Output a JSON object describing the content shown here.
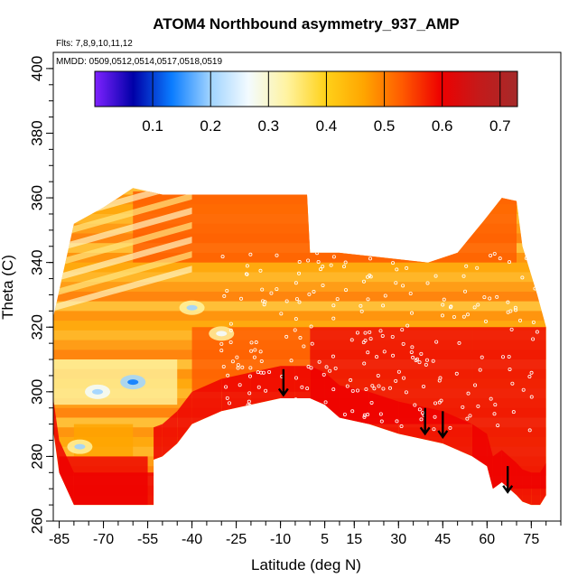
{
  "chart_data": {
    "type": "heatmap",
    "title": "ATOM4 Northbound asymmetry_937_AMP",
    "subtitle_flights": "Flts: 7,8,9,10,11,12",
    "subtitle_dates": "MMDD: 0509,0512,0514,0517,0518,0519",
    "xlabel": "Latitude (deg N)",
    "ylabel": "Theta (C)",
    "xlim": [
      -87,
      85
    ],
    "ylim": [
      260,
      405
    ],
    "x_ticks": [
      -85,
      -70,
      -55,
      -40,
      -25,
      -10,
      5,
      15,
      30,
      45,
      60,
      75
    ],
    "x_tick_labels": [
      "-85",
      "-70",
      "-55",
      "-40",
      "-25",
      "-10",
      "5",
      "15",
      "30",
      "45",
      "60",
      "75"
    ],
    "y_ticks": [
      260,
      280,
      300,
      320,
      340,
      360,
      380,
      400
    ],
    "y_tick_labels": [
      "260",
      "280",
      "300",
      "320",
      "340",
      "360",
      "380",
      "400"
    ],
    "colorbar": {
      "range": [
        0.0,
        0.73
      ],
      "ticks": [
        0.1,
        0.2,
        0.3,
        0.4,
        0.5,
        0.6,
        0.7
      ],
      "tick_labels": [
        "0.1",
        "0.2",
        "0.3",
        "0.4",
        "0.5",
        "0.6",
        "0.7"
      ],
      "colors": [
        "#7f22ff",
        "#0000a8",
        "#0a7cff",
        "#9fd3ff",
        "#f3fbff",
        "#fff3a0",
        "#ffd21a",
        "#ffa500",
        "#ff5a00",
        "#ee0000",
        "#c41a1a",
        "#a52a2a"
      ]
    },
    "region": {
      "upper_boundary": [
        [
          -87,
          323
        ],
        [
          -80,
          352
        ],
        [
          -70,
          357
        ],
        [
          -60,
          363
        ],
        [
          -50,
          361
        ],
        [
          -40,
          361
        ],
        [
          -20,
          361
        ],
        [
          -1,
          361
        ],
        [
          0,
          343
        ],
        [
          10,
          343
        ],
        [
          20,
          342
        ],
        [
          30,
          341
        ],
        [
          40,
          340
        ],
        [
          50,
          343
        ],
        [
          59,
          353
        ],
        [
          65,
          360
        ],
        [
          70,
          359
        ],
        [
          72,
          345
        ],
        [
          77,
          330
        ],
        [
          80,
          320
        ]
      ],
      "lower_boundary": [
        [
          -87,
          288
        ],
        [
          -85,
          275
        ],
        [
          -80,
          265
        ],
        [
          -53,
          265
        ],
        [
          -53,
          279
        ],
        [
          -50,
          280
        ],
        [
          -45,
          284
        ],
        [
          -40,
          290
        ],
        [
          -30,
          294
        ],
        [
          -20,
          296
        ],
        [
          -10,
          298
        ],
        [
          -5,
          298
        ],
        [
          0,
          298
        ],
        [
          5,
          296
        ],
        [
          10,
          292
        ],
        [
          20,
          290
        ],
        [
          30,
          287
        ],
        [
          40,
          285
        ],
        [
          45,
          284
        ],
        [
          55,
          280
        ],
        [
          60,
          277
        ],
        [
          62,
          270
        ],
        [
          65,
          272
        ],
        [
          70,
          268
        ],
        [
          72,
          266
        ],
        [
          75,
          265
        ],
        [
          78,
          265
        ],
        [
          80,
          268
        ]
      ],
      "value_bands": [
        {
          "lat": [
            -87,
            -45
          ],
          "theta": [
            296,
            310
          ],
          "value": 0.35
        },
        {
          "lat": [
            -80,
            -60
          ],
          "theta": [
            280,
            290
          ],
          "value": 0.45
        },
        {
          "lat": [
            -85,
            -55
          ],
          "theta": [
            265,
            280
          ],
          "value": 0.62
        },
        {
          "lat": [
            -40,
            0
          ],
          "theta": [
            300,
            320
          ],
          "value": 0.52
        },
        {
          "lat": [
            0,
            55
          ],
          "theta": [
            290,
            320
          ],
          "value": 0.62
        },
        {
          "lat": [
            -60,
            70
          ],
          "theta": [
            340,
            362
          ],
          "value": 0.5
        },
        {
          "lat": [
            55,
            80
          ],
          "theta": [
            270,
            320
          ],
          "value": 0.6
        }
      ]
    },
    "cold_spots": [
      {
        "lat": -60,
        "theta": 303,
        "value": 0.2
      },
      {
        "lat": -40,
        "theta": 326,
        "value": 0.3
      },
      {
        "lat": -72,
        "theta": 300,
        "value": 0.25
      },
      {
        "lat": -30,
        "theta": 318,
        "value": 0.32
      },
      {
        "lat": -78,
        "theta": 283,
        "value": 0.3
      }
    ],
    "arrows": [
      {
        "lat": -9,
        "theta": 301
      },
      {
        "lat": 39,
        "theta": 289
      },
      {
        "lat": 45,
        "theta": 288
      },
      {
        "lat": 67,
        "theta": 271
      }
    ]
  }
}
